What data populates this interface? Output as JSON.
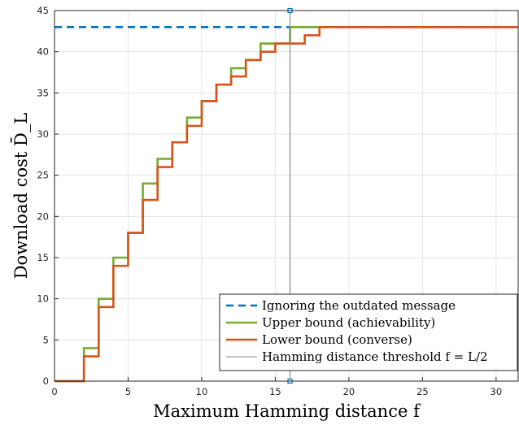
{
  "chart_data": {
    "type": "line",
    "title": "",
    "xlabel": "Maximum Hamming distance f",
    "ylabel": "Download cost D̄_L",
    "xlim": [
      0,
      31.5
    ],
    "ylim": [
      0,
      45
    ],
    "xticks": [
      "0",
      "5",
      "10",
      "15",
      "20",
      "25",
      "30"
    ],
    "yticks": [
      "0",
      "5",
      "10",
      "15",
      "20",
      "25",
      "30",
      "35",
      "40",
      "45"
    ],
    "grid": true,
    "legend_position": "bottom-right",
    "series": [
      {
        "name": "Ignoring the outdated message",
        "style": "dashed",
        "color": "#0072BD",
        "x": [
          0,
          31.5
        ],
        "y": [
          43,
          43
        ]
      },
      {
        "name": "Upper bound (achievability)",
        "style": "stairs",
        "color": "#77AC30",
        "x": [
          0,
          1,
          2,
          3,
          4,
          5,
          6,
          7,
          8,
          9,
          10,
          11,
          12,
          13,
          14,
          15,
          16,
          17,
          18,
          19,
          20,
          21,
          22,
          23,
          24,
          25,
          26,
          27,
          28,
          29,
          30,
          31
        ],
        "y": [
          0,
          0,
          4,
          10,
          15,
          18,
          24,
          27,
          29,
          32,
          34,
          36,
          38,
          39,
          41,
          41,
          43,
          43,
          43,
          43,
          43,
          43,
          43,
          43,
          43,
          43,
          43,
          43,
          43,
          43,
          43,
          43
        ]
      },
      {
        "name": "Lower bound (converse)",
        "style": "stairs",
        "color": "#D95319",
        "x": [
          0,
          1,
          2,
          3,
          4,
          5,
          6,
          7,
          8,
          9,
          10,
          11,
          12,
          13,
          14,
          15,
          16,
          17,
          18,
          19,
          20,
          21,
          22,
          23,
          24,
          25,
          26,
          27,
          28,
          29,
          30,
          31
        ],
        "y": [
          0,
          0,
          3,
          9,
          14,
          18,
          22,
          26,
          29,
          31,
          34,
          36,
          37,
          39,
          40,
          41,
          41,
          42,
          43,
          43,
          43,
          43,
          43,
          43,
          43,
          43,
          43,
          43,
          43,
          43,
          43,
          43
        ]
      },
      {
        "name": "Hamming distance threshold f = L/2",
        "style": "vertical",
        "color": "#808080",
        "x": [
          16,
          16
        ],
        "y": [
          0,
          45
        ]
      }
    ],
    "markers": [
      {
        "x": 16,
        "y": 45
      },
      {
        "x": 16,
        "y": 0
      }
    ]
  }
}
